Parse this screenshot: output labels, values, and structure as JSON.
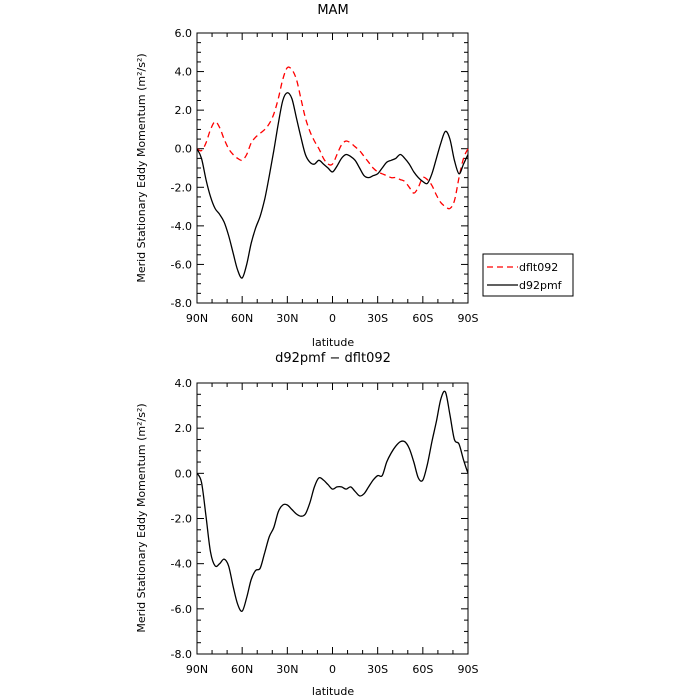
{
  "chart_data": [
    {
      "type": "line",
      "title": "MAM",
      "xlabel": "latitude",
      "ylabel": "Merid Stationary Eddy Momentum (m²/s²)",
      "xlim": [
        90,
        -90
      ],
      "ylim": [
        -8,
        6
      ],
      "grid": false,
      "legend": "right",
      "x_tick_labels": [
        "90N",
        "60N",
        "30N",
        "0",
        "30S",
        "60S",
        "90S"
      ],
      "x_tick_values": [
        90,
        60,
        30,
        0,
        -30,
        -60,
        -90
      ],
      "y_tick_labels": [
        "-8.0",
        "-6.0",
        "-4.0",
        "-2.0",
        "0.0",
        "2.0",
        "4.0",
        "6.0"
      ],
      "y_tick_values": [
        -8,
        -6,
        -4,
        -2,
        0,
        2,
        4,
        6
      ],
      "series": [
        {
          "name": "dflt092",
          "color": "#ff0000",
          "dash": "dashed",
          "x": [
            90,
            87,
            84,
            81,
            78,
            75,
            72,
            69,
            66,
            63,
            60,
            57,
            54,
            51,
            48,
            45,
            42,
            39,
            36,
            33,
            30,
            27,
            24,
            21,
            18,
            15,
            12,
            9,
            6,
            3,
            0,
            -3,
            -6,
            -9,
            -12,
            -15,
            -18,
            -21,
            -24,
            -27,
            -30,
            -33,
            -36,
            -39,
            -42,
            -45,
            -48,
            -51,
            -54,
            -57,
            -60,
            -63,
            -66,
            -69,
            -72,
            -75,
            -78,
            -81,
            -84,
            -87,
            -90
          ],
          "y": [
            0.0,
            -0.1,
            0.3,
            1.0,
            1.4,
            1.1,
            0.5,
            0.0,
            -0.3,
            -0.5,
            -0.6,
            -0.3,
            0.3,
            0.6,
            0.8,
            1.0,
            1.3,
            1.8,
            2.6,
            3.6,
            4.2,
            4.1,
            3.6,
            2.6,
            1.6,
            0.9,
            0.4,
            0.0,
            -0.5,
            -0.8,
            -0.8,
            -0.3,
            0.2,
            0.4,
            0.3,
            0.1,
            -0.1,
            -0.4,
            -0.7,
            -1.0,
            -1.2,
            -1.3,
            -1.4,
            -1.5,
            -1.5,
            -1.6,
            -1.7,
            -2.0,
            -2.3,
            -2.0,
            -1.5,
            -1.6,
            -1.9,
            -2.4,
            -2.8,
            -3.0,
            -3.1,
            -2.7,
            -1.5,
            -0.5,
            0.0
          ]
        },
        {
          "name": "d92pmf",
          "color": "#000000",
          "dash": "solid",
          "x": [
            90,
            87,
            84,
            81,
            78,
            75,
            72,
            69,
            66,
            63,
            60,
            57,
            54,
            51,
            48,
            45,
            42,
            39,
            36,
            33,
            30,
            27,
            24,
            21,
            18,
            15,
            12,
            9,
            6,
            3,
            0,
            -3,
            -6,
            -9,
            -12,
            -15,
            -18,
            -21,
            -24,
            -27,
            -30,
            -33,
            -36,
            -39,
            -42,
            -45,
            -48,
            -51,
            -54,
            -57,
            -60,
            -63,
            -66,
            -69,
            -72,
            -75,
            -78,
            -81,
            -84,
            -87,
            -90
          ],
          "y": [
            0.0,
            -0.5,
            -1.6,
            -2.5,
            -3.1,
            -3.4,
            -3.8,
            -4.5,
            -5.4,
            -6.3,
            -6.7,
            -6.0,
            -4.9,
            -4.1,
            -3.5,
            -2.6,
            -1.4,
            -0.1,
            1.3,
            2.5,
            2.9,
            2.6,
            1.6,
            0.6,
            -0.3,
            -0.7,
            -0.8,
            -0.6,
            -0.8,
            -1.0,
            -1.2,
            -0.9,
            -0.5,
            -0.3,
            -0.4,
            -0.6,
            -1.0,
            -1.4,
            -1.5,
            -1.4,
            -1.3,
            -1.0,
            -0.7,
            -0.6,
            -0.5,
            -0.3,
            -0.5,
            -0.8,
            -1.2,
            -1.5,
            -1.7,
            -1.8,
            -1.3,
            -0.5,
            0.3,
            0.9,
            0.5,
            -0.6,
            -1.3,
            -0.8,
            -0.3
          ]
        }
      ]
    },
    {
      "type": "line",
      "title": "d92pmf − dflt092",
      "xlabel": "latitude",
      "ylabel": "Merid Stationary Eddy Momentum (m²/s²)",
      "xlim": [
        90,
        -90
      ],
      "ylim": [
        -8,
        4
      ],
      "grid": false,
      "x_tick_labels": [
        "90N",
        "60N",
        "30N",
        "0",
        "30S",
        "60S",
        "90S"
      ],
      "x_tick_values": [
        90,
        60,
        30,
        0,
        -30,
        -60,
        -90
      ],
      "y_tick_labels": [
        "-8.0",
        "-6.0",
        "-4.0",
        "-2.0",
        "0.0",
        "2.0",
        "4.0"
      ],
      "y_tick_values": [
        -8,
        -6,
        -4,
        -2,
        0,
        2,
        4
      ],
      "series": [
        {
          "color": "#000000",
          "dash": "solid",
          "x": [
            90,
            87,
            84,
            81,
            78,
            75,
            72,
            69,
            66,
            63,
            60,
            57,
            54,
            51,
            48,
            45,
            42,
            39,
            36,
            33,
            30,
            27,
            24,
            21,
            18,
            15,
            12,
            9,
            6,
            3,
            0,
            -3,
            -6,
            -9,
            -12,
            -15,
            -18,
            -21,
            -24,
            -27,
            -30,
            -33,
            -36,
            -39,
            -42,
            -45,
            -48,
            -51,
            -54,
            -57,
            -60,
            -63,
            -66,
            -69,
            -72,
            -75,
            -78,
            -81,
            -84,
            -87,
            -90
          ],
          "y": [
            0.0,
            -0.4,
            -1.9,
            -3.5,
            -4.1,
            -4.0,
            -3.8,
            -4.1,
            -5.0,
            -5.8,
            -6.1,
            -5.5,
            -4.7,
            -4.3,
            -4.2,
            -3.5,
            -2.8,
            -2.4,
            -1.7,
            -1.4,
            -1.4,
            -1.6,
            -1.8,
            -1.9,
            -1.8,
            -1.3,
            -0.6,
            -0.2,
            -0.3,
            -0.5,
            -0.7,
            -0.6,
            -0.6,
            -0.7,
            -0.6,
            -0.8,
            -1.0,
            -0.9,
            -0.6,
            -0.3,
            -0.1,
            -0.1,
            0.5,
            0.9,
            1.2,
            1.4,
            1.4,
            1.1,
            0.5,
            -0.2,
            -0.3,
            0.4,
            1.4,
            2.3,
            3.3,
            3.6,
            2.6,
            1.5,
            1.3,
            0.6,
            0.0
          ]
        }
      ]
    }
  ]
}
